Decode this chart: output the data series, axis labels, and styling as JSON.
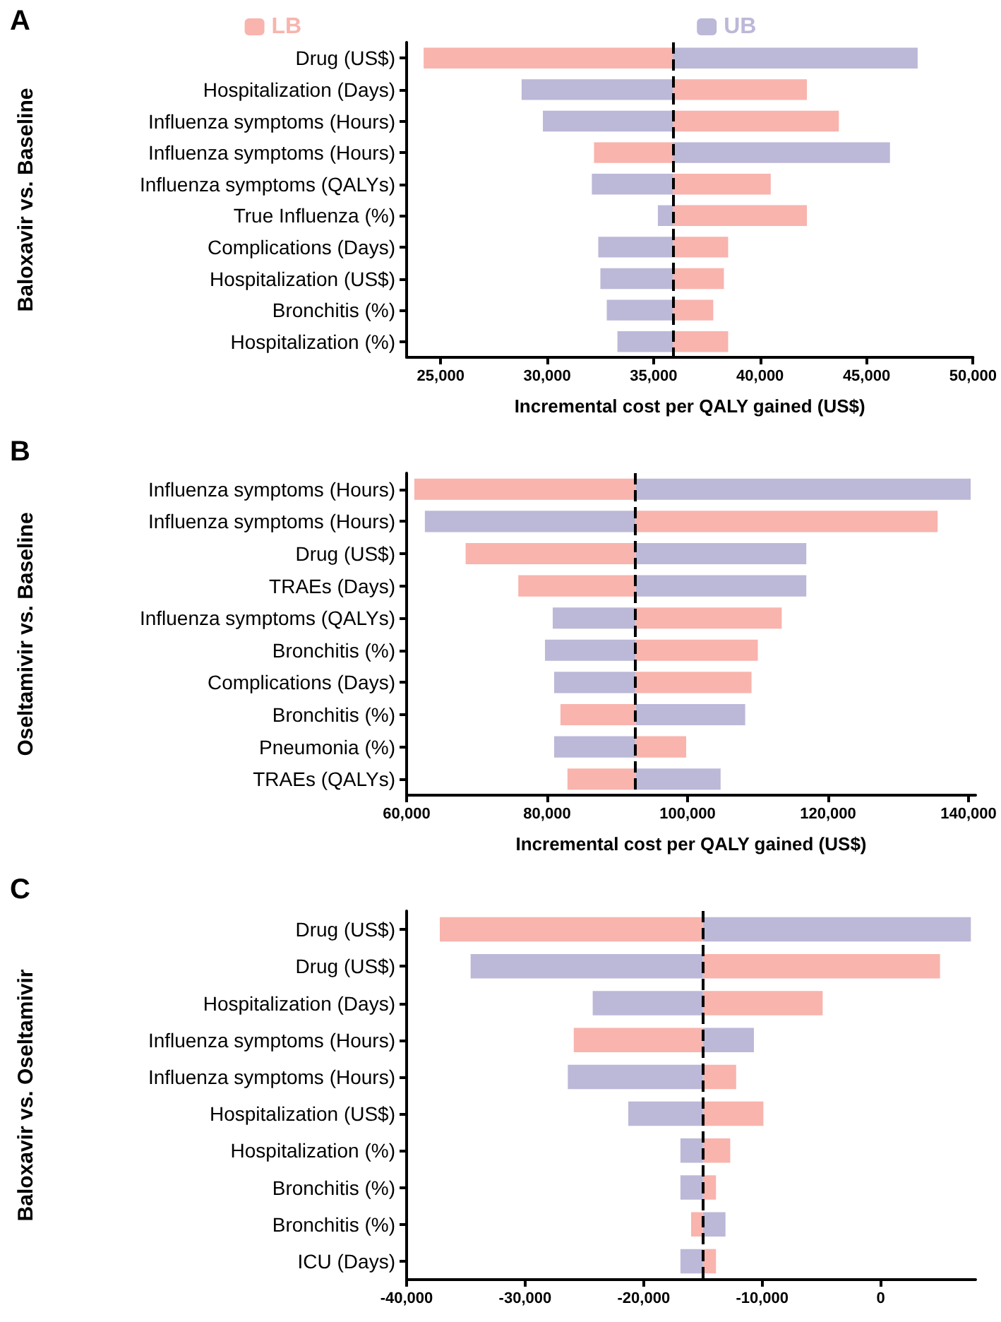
{
  "chart_data": [
    {
      "type": "bar",
      "orientation": "horizontal",
      "title": "A",
      "xlabel": "Incremental cost per QALY gained (US$)",
      "ylabel": "Baloxavir vs. Baseline",
      "categories": [
        "Drug (US$)",
        "Hospitalization (Days)",
        "Influenza symptoms (Hours)",
        "Influenza symptoms (Hours)",
        "Influenza symptoms (QALYs)",
        "True Influenza (%)",
        "Complications (Days)",
        "Hospitalization (US$)",
        "Bronchitis (%)",
        "Hospitalization (%)"
      ],
      "series": [
        {
          "name": "LB",
          "color": "#f8b4ad",
          "base": [
            35900,
            35900,
            35900,
            35900,
            35900,
            35900,
            35900,
            35900,
            35900,
            35900
          ],
          "values": [
            -11700,
            6300,
            7800,
            -3700,
            4600,
            6300,
            2600,
            2400,
            1900,
            2600
          ]
        },
        {
          "name": "UB",
          "color": "#bcb8d8",
          "base": [
            35900,
            35900,
            35900,
            35900,
            35900,
            35900,
            35900,
            35900,
            35900,
            35900
          ],
          "values": [
            11500,
            -7100,
            -6100,
            10200,
            -3800,
            -700,
            -3500,
            -3400,
            -3100,
            -2600
          ]
        }
      ],
      "xlim": [
        23400,
        50000
      ],
      "xticks": [
        {
          "value": 25000,
          "label": "25,000"
        },
        {
          "value": 30000,
          "label": "30,000"
        },
        {
          "value": 35000,
          "label": "35,000"
        },
        {
          "value": 40000,
          "label": "40,000"
        },
        {
          "value": 45000,
          "label": "45,000"
        },
        {
          "value": 50000,
          "label": "50,000"
        }
      ],
      "ref_lines": [
        {
          "axis": "x",
          "value": 35900,
          "color": "#000000",
          "line_style": "dashed"
        }
      ],
      "legend": "top",
      "grid": false
    },
    {
      "type": "bar",
      "orientation": "horizontal",
      "title": "B",
      "xlabel": "Incremental cost per QALY gained (US$)",
      "ylabel": "Oseltamivir vs. Baseline",
      "categories": [
        "Influenza symptoms (Hours)",
        "Influenza symptoms (Hours)",
        "Drug (US$)",
        "TRAEs (Days)",
        "Influenza symptoms (QALYs)",
        "Bronchitis (%)",
        "Complications (Days)",
        "Bronchitis (%)",
        "Pneumonia (%)",
        "TRAEs (QALYs)"
      ],
      "series": [
        {
          "color": "#f8b4ad",
          "base": [
            92600,
            92600,
            92600,
            92600,
            92600,
            92600,
            92600,
            92600,
            92600,
            92600
          ],
          "values": [
            -31500,
            43000,
            -24200,
            -16700,
            20800,
            17400,
            16500,
            -10700,
            7200,
            -9700
          ]
        },
        {
          "color": "#bcb8d8",
          "base": [
            92600,
            92600,
            92600,
            92600,
            92600,
            92600,
            92600,
            92600,
            92600,
            92600
          ],
          "values": [
            47700,
            -30000,
            24300,
            24300,
            -11800,
            -12900,
            -11600,
            15600,
            -11600,
            12100
          ]
        }
      ],
      "xlim": [
        60000,
        141000
      ],
      "xticks": [
        {
          "value": 60000,
          "label": "60,000"
        },
        {
          "value": 80000,
          "label": "80,000"
        },
        {
          "value": 100000,
          "label": "100,000"
        },
        {
          "value": 120000,
          "label": "120,000"
        },
        {
          "value": 140000,
          "label": "140,000"
        }
      ],
      "ref_lines": [
        {
          "axis": "x",
          "value": 92600,
          "color": "#000000",
          "line_style": "dashed"
        }
      ],
      "grid": false
    },
    {
      "type": "bar",
      "orientation": "horizontal",
      "title": "C",
      "ylabel": "Baloxavir vs. Oseltamivir",
      "categories": [
        "Drug (US$)",
        "Drug (US$)",
        "Hospitalization (Days)",
        "Influenza symptoms (Hours)",
        "Influenza symptoms (Hours)",
        "Hospitalization (US$)",
        "Hospitalization (%)",
        "Bronchitis (%)",
        "Bronchitis (%)",
        "ICU (Days)"
      ],
      "series": [
        {
          "color": "#f8b4ad",
          "base": [
            -15000,
            -15000,
            -15000,
            -15000,
            -15000,
            -15000,
            -15000,
            -15000,
            -15000,
            -15000
          ],
          "values": [
            -22200,
            20000,
            10100,
            -10900,
            2800,
            5100,
            2300,
            1100,
            -1000,
            1100
          ]
        },
        {
          "color": "#bcb8d8",
          "base": [
            -15000,
            -15000,
            -15000,
            -15000,
            -15000,
            -15000,
            -15000,
            -15000,
            -15000,
            -15000
          ],
          "values": [
            22600,
            -19600,
            -9300,
            4300,
            -11400,
            -6300,
            -1900,
            -1900,
            1900,
            -1900
          ]
        }
      ],
      "xlim": [
        -40000,
        8000
      ],
      "xticks": [
        {
          "value": -40000,
          "label": "-40,000"
        },
        {
          "value": -30000,
          "label": "-30,000"
        },
        {
          "value": -20000,
          "label": "-20,000"
        },
        {
          "value": -10000,
          "label": "-10,000"
        },
        0
      ],
      "ref_lines": [
        {
          "axis": "x",
          "value": -15000,
          "color": "#000000",
          "line_style": "dashed"
        }
      ],
      "grid": false
    }
  ]
}
